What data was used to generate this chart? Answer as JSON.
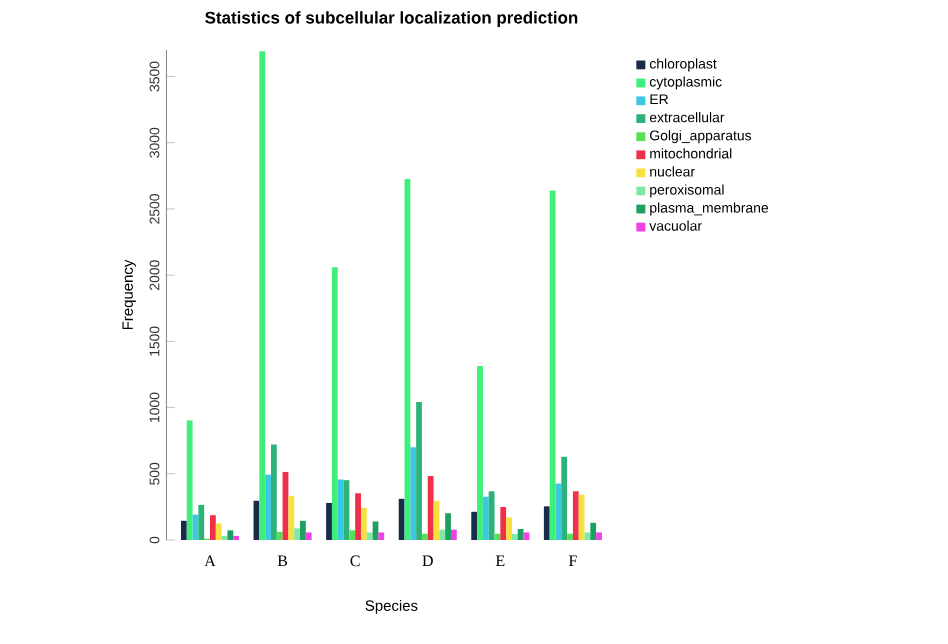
{
  "chart_data": {
    "type": "bar",
    "title": "Statistics of subcellular localization prediction",
    "xlabel": "Species",
    "ylabel": "Frequency",
    "categories": [
      "A",
      "B",
      "C",
      "D",
      "E",
      "F"
    ],
    "series": [
      {
        "name": "chloroplast",
        "color": "#1a2a4a",
        "values": [
          145,
          296,
          280,
          311,
          213,
          254
        ]
      },
      {
        "name": "cytoplasmic",
        "color": "#3ef07a",
        "values": [
          903,
          3690,
          2060,
          2725,
          1313,
          2640
        ]
      },
      {
        "name": "ER",
        "color": "#3cc8e0",
        "values": [
          192,
          493,
          457,
          700,
          327,
          426
        ]
      },
      {
        "name": "extracellular",
        "color": "#2db37a",
        "values": [
          265,
          721,
          452,
          1043,
          368,
          628
        ]
      },
      {
        "name": "Golgi_apparatus",
        "color": "#55e055",
        "values": [
          10,
          62,
          73,
          47,
          47,
          47
        ]
      },
      {
        "name": "mitochondrial",
        "color": "#f0304a",
        "values": [
          187,
          514,
          353,
          483,
          249,
          368
        ]
      },
      {
        "name": "nuclear",
        "color": "#f8e040",
        "values": [
          125,
          332,
          244,
          296,
          171,
          343
        ]
      },
      {
        "name": "peroxisomal",
        "color": "#80e8a8",
        "values": [
          31,
          88,
          57,
          78,
          47,
          57
        ]
      },
      {
        "name": "plasma_membrane",
        "color": "#20a060",
        "values": [
          73,
          145,
          140,
          202,
          83,
          130
        ]
      },
      {
        "name": "vacuolar",
        "color": "#f040e8",
        "values": [
          31,
          57,
          57,
          78,
          57,
          57
        ]
      }
    ],
    "ylim": [
      0,
      3700
    ],
    "yticks": [
      0,
      500,
      1000,
      1500,
      2000,
      2500,
      3000,
      3500
    ],
    "legend": "right"
  }
}
